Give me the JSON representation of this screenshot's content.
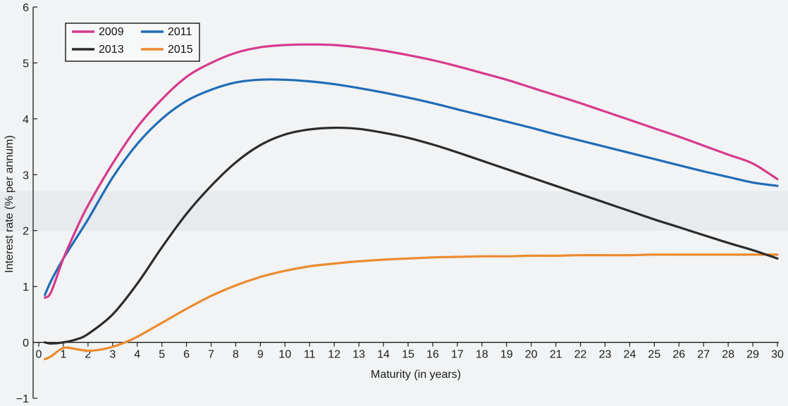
{
  "chart_data": {
    "type": "line",
    "xlabel": "Maturity (in years)",
    "ylabel": "Interest rate (% per annum)",
    "xlim": [
      0,
      30
    ],
    "ylim": [
      -1,
      6
    ],
    "x_ticks": [
      "0",
      "1",
      "2",
      "3",
      "4",
      "5",
      "6",
      "7",
      "8",
      "9",
      "10",
      "11",
      "12",
      "13",
      "14",
      "15",
      "16",
      "17",
      "18",
      "19",
      "20",
      "21",
      "22",
      "23",
      "24",
      "25",
      "26",
      "27",
      "28",
      "29",
      "30"
    ],
    "y_ticks": [
      "−1",
      "0",
      "1",
      "2",
      "3",
      "4",
      "5",
      "6"
    ],
    "grid": false,
    "legend_position": "top-left",
    "series": [
      {
        "name": "2009",
        "color": "#d63a8c",
        "x": [
          0.25,
          0.5,
          1,
          1.5,
          2,
          3,
          4,
          5,
          6,
          7,
          8,
          9,
          10,
          11,
          12,
          13,
          14,
          15,
          16,
          17,
          18,
          19,
          20,
          21,
          22,
          23,
          24,
          25,
          26,
          27,
          28,
          29,
          30
        ],
        "y": [
          0.8,
          0.9,
          1.5,
          2.0,
          2.45,
          3.2,
          3.85,
          4.35,
          4.75,
          5.0,
          5.18,
          5.28,
          5.32,
          5.33,
          5.32,
          5.28,
          5.22,
          5.14,
          5.05,
          4.94,
          4.82,
          4.7,
          4.56,
          4.42,
          4.28,
          4.13,
          3.98,
          3.83,
          3.68,
          3.52,
          3.36,
          3.2,
          2.92
        ]
      },
      {
        "name": "2011",
        "color": "#1f6cb8",
        "x": [
          0.25,
          0.5,
          1,
          1.5,
          2,
          3,
          4,
          5,
          6,
          7,
          8,
          9,
          10,
          11,
          12,
          13,
          14,
          15,
          16,
          17,
          18,
          19,
          20,
          21,
          22,
          23,
          24,
          25,
          26,
          27,
          28,
          29,
          30
        ],
        "y": [
          0.85,
          1.1,
          1.5,
          1.85,
          2.2,
          2.95,
          3.55,
          4.0,
          4.32,
          4.52,
          4.65,
          4.7,
          4.7,
          4.67,
          4.62,
          4.55,
          4.47,
          4.38,
          4.28,
          4.17,
          4.06,
          3.95,
          3.84,
          3.72,
          3.61,
          3.5,
          3.39,
          3.28,
          3.17,
          3.06,
          2.96,
          2.86,
          2.8
        ]
      },
      {
        "name": "2013",
        "color": "#2b2b2b",
        "x": [
          0.25,
          0.5,
          1,
          1.5,
          2,
          3,
          4,
          5,
          6,
          7,
          8,
          9,
          10,
          11,
          12,
          13,
          14,
          15,
          16,
          17,
          18,
          19,
          20,
          21,
          22,
          23,
          24,
          25,
          26,
          27,
          28,
          29,
          30
        ],
        "y": [
          0.0,
          -0.02,
          0.0,
          0.05,
          0.15,
          0.5,
          1.05,
          1.7,
          2.3,
          2.8,
          3.22,
          3.53,
          3.72,
          3.81,
          3.84,
          3.82,
          3.75,
          3.66,
          3.54,
          3.4,
          3.25,
          3.1,
          2.95,
          2.8,
          2.65,
          2.5,
          2.35,
          2.2,
          2.06,
          1.92,
          1.78,
          1.65,
          1.5
        ]
      },
      {
        "name": "2015",
        "color": "#ec8a2e",
        "x": [
          0.25,
          0.5,
          1,
          1.5,
          2,
          2.5,
          3,
          3.5,
          4,
          5,
          6,
          7,
          8,
          9,
          10,
          11,
          12,
          13,
          14,
          15,
          16,
          17,
          18,
          19,
          20,
          21,
          22,
          23,
          24,
          25,
          26,
          27,
          28,
          29,
          30
        ],
        "y": [
          -0.3,
          -0.25,
          -0.1,
          -0.12,
          -0.15,
          -0.13,
          -0.08,
          0.0,
          0.1,
          0.35,
          0.6,
          0.83,
          1.02,
          1.17,
          1.28,
          1.36,
          1.41,
          1.45,
          1.48,
          1.5,
          1.52,
          1.53,
          1.54,
          1.54,
          1.55,
          1.55,
          1.56,
          1.56,
          1.56,
          1.57,
          1.57,
          1.57,
          1.57,
          1.57,
          1.57
        ]
      }
    ]
  }
}
